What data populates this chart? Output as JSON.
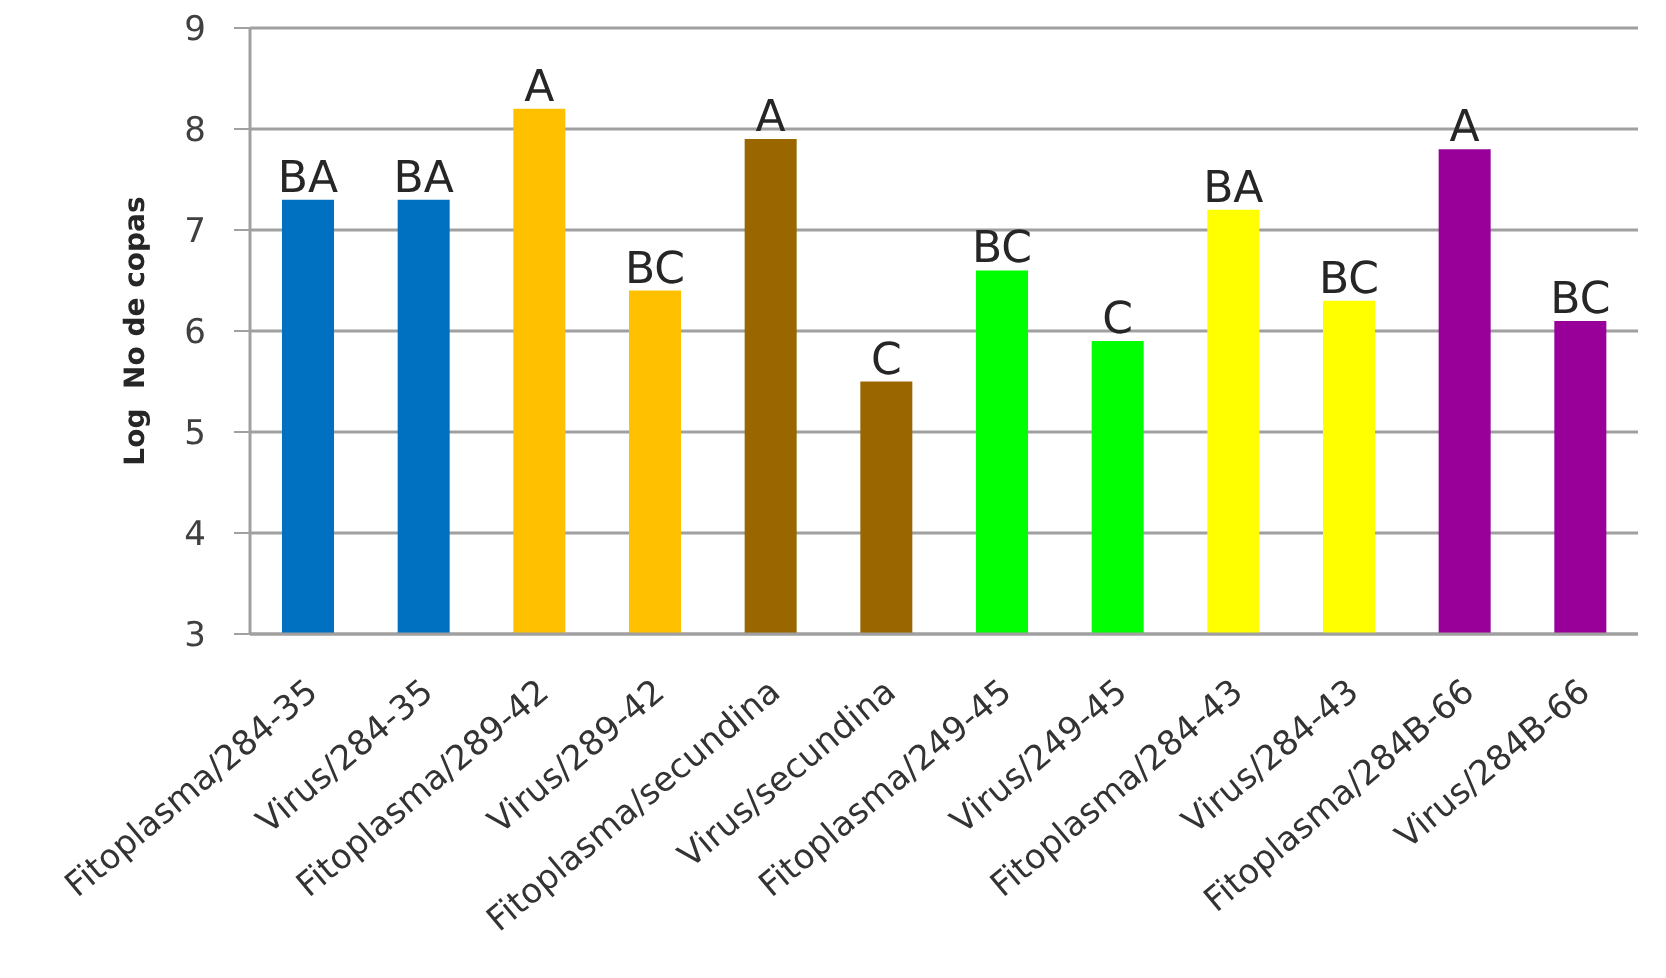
{
  "chart_data": {
    "type": "bar",
    "ylabel": "Log  No de copas",
    "categories": [
      "Fitoplasma/284-35",
      "Virus/284-35",
      "Fitoplasma/289-42",
      "Virus/289-42",
      "Fitoplasma/secundina",
      "Virus/secundina",
      "Fitoplasma/249-45",
      "Virus/249-45",
      "Fitoplasma/284-43",
      "Virus/284-43",
      "Fitoplasma/284B-66",
      "Virus/284B-66"
    ],
    "values": [
      7.3,
      7.3,
      8.2,
      6.4,
      7.9,
      5.5,
      6.6,
      5.9,
      7.2,
      6.3,
      7.8,
      6.1
    ],
    "colors": [
      "#0070c0",
      "#0070c0",
      "#ffc000",
      "#ffc000",
      "#996600",
      "#996600",
      "#00ff00",
      "#00ff00",
      "#ffff00",
      "#ffff00",
      "#990099",
      "#990099"
    ],
    "value_labels": [
      "BA",
      "BA",
      "A",
      "BC",
      "A",
      "C",
      "BC",
      "C",
      "BA",
      "BC",
      "A",
      "BC"
    ],
    "ylim": [
      3,
      9
    ],
    "yticks": [
      3,
      4,
      5,
      6,
      7,
      8,
      9
    ],
    "grid": "y"
  }
}
